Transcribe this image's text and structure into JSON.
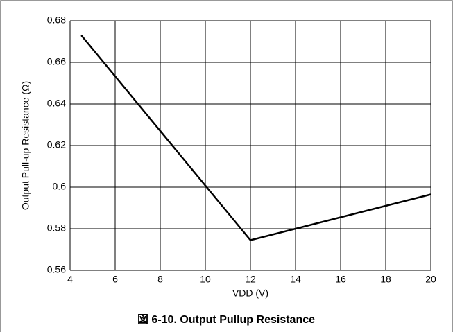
{
  "chart_data": {
    "type": "line",
    "title": "図 6-10. Output Pullup Resistance",
    "x_label": "VDD (V)",
    "y_label": "Output Pull-up Resistance (Ω)",
    "series": [
      {
        "name": "Output Pull-up Resistance",
        "color": "#000000",
        "x": [
          4.5,
          12,
          20
        ],
        "values": [
          0.673,
          0.5745,
          0.5965
        ]
      }
    ],
    "xlim": [
      4,
      20
    ],
    "xticks": [
      4,
      6,
      8,
      10,
      12,
      14,
      16,
      18,
      20
    ],
    "ylim": [
      0.56,
      0.68
    ],
    "yticks": [
      0.56,
      0.58,
      0.6,
      0.62,
      0.64,
      0.66,
      0.68
    ],
    "grid": true
  }
}
